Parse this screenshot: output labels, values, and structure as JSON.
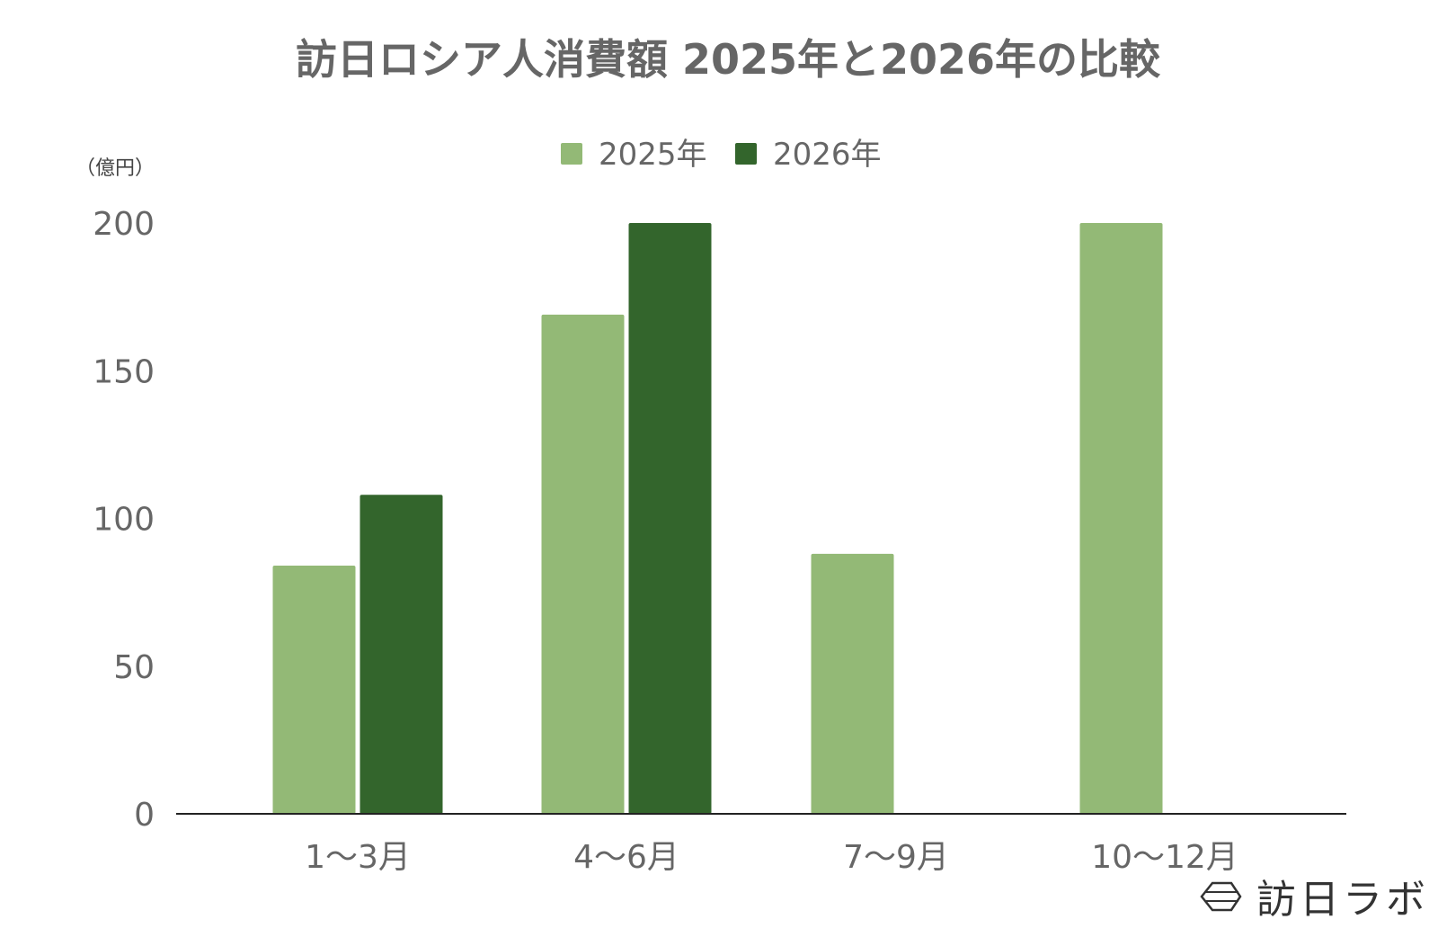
{
  "chart_data": {
    "type": "bar",
    "title": "訪日ロシア人消費額 2025年と2026年の比較",
    "unit_label": "（億円）",
    "categories": [
      "1〜3月",
      "4〜6月",
      "7〜9月",
      "10〜12月"
    ],
    "series": [
      {
        "name": "2025年",
        "values": [
          84,
          169,
          88,
          200
        ],
        "color": "#93b976"
      },
      {
        "name": "2026年",
        "values": [
          108,
          200,
          null,
          null
        ],
        "color": "#33652c"
      }
    ],
    "ylim": [
      0,
      200
    ],
    "yticks": [
      0,
      50,
      100,
      150,
      200
    ],
    "legend_position": "top-center",
    "grid": false,
    "axis_color": "#222222",
    "text_color": "#666666"
  },
  "brand": {
    "name": "訪日ラボ",
    "icon": "hexagon-logo-icon"
  }
}
